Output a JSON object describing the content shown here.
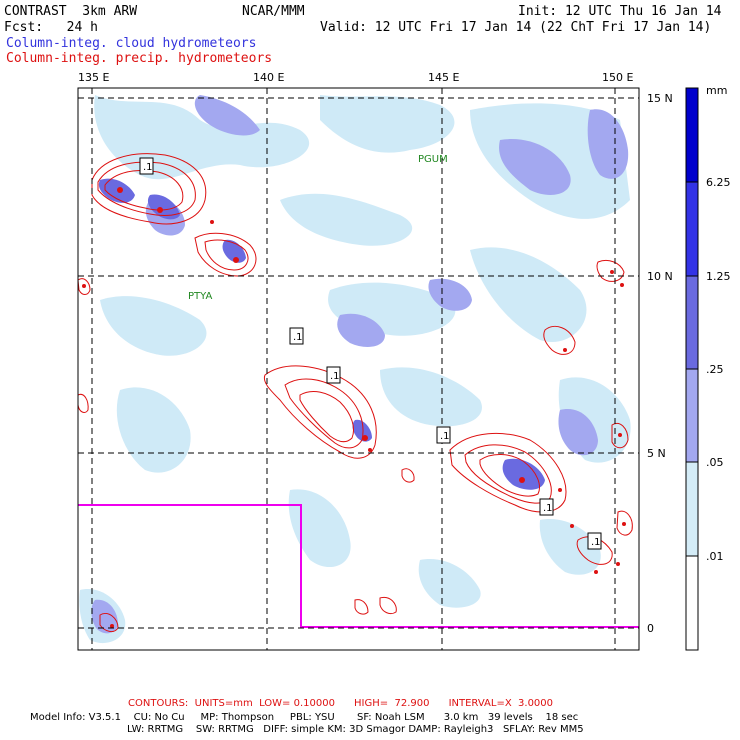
{
  "header": {
    "model_title": "CONTRAST  3km ARW",
    "institution": "NCAR/MMM",
    "init": "Init: 12 UTC Thu 16 Jan 14",
    "fcst": "Fcst:   24 h",
    "valid": "Valid: 12 UTC Fri 17 Jan 14 (22 ChT Fri 17 Jan 14)",
    "legend_cloud": "Column-integ. cloud hydrometeors",
    "legend_precip": "Column-integ. precip. hydrometeors"
  },
  "axes": {
    "lon_ticks": [
      "135 E",
      "140 E",
      "145 E",
      "150 E"
    ],
    "lat_ticks": [
      "15 N",
      "10 N",
      "5 N",
      "0"
    ]
  },
  "places": [
    "PGUM",
    "PTYA"
  ],
  "contour_label": ".1",
  "colorbar": {
    "unit": "mm",
    "labels": [
      "6.25",
      "1.25",
      ".25",
      ".05",
      ".01"
    ],
    "colors": [
      "#0000cc",
      "#3333e6",
      "#6a6ae0",
      "#a3a8f0",
      "#d4ecf7",
      "#ffffff"
    ]
  },
  "colors": {
    "cloud_light": "#cfeaf7",
    "cloud_mid": "#a3a8f0",
    "cloud_dark": "#6a6ae0",
    "precip": "#dd1111",
    "domain_box": "#ee00ee"
  },
  "footer": {
    "contours": "CONTOURS:  UNITS=mm  LOW= 0.10000      HIGH=  72.900      INTERVAL=X  3.0000",
    "model_info_1": "Model Info: V3.5.1    CU: No Cu     MP: Thompson     PBL: YSU       SF: Noah LSM      3.0 km   39 levels    18 sec",
    "model_info_2": "LW: RRTMG    SW: RRTMG   DIFF: simple KM: 3D Smagor DAMP: Rayleigh3   SFLAY: Rev MM5"
  }
}
